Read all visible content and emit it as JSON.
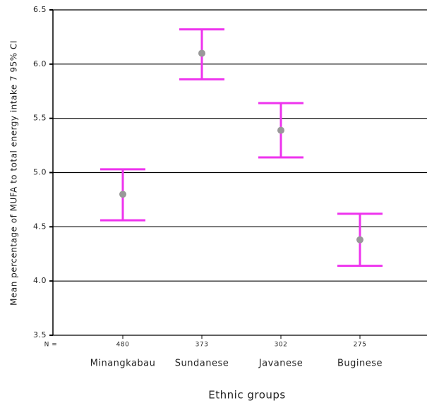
{
  "chart_data": {
    "type": "errorbar",
    "y_label": "Mean percentage of MUFA to total energy intake 7 95% CI",
    "x_label": "Ethnic groups",
    "categories": [
      "Minangkabau",
      "Sundanese",
      "Javanese",
      "Buginese"
    ],
    "values": [
      4.8,
      6.1,
      5.39,
      4.38
    ],
    "lower": [
      4.56,
      5.86,
      5.14,
      4.14
    ],
    "upper": [
      5.03,
      6.32,
      5.64,
      4.62
    ],
    "n_label": "N =",
    "n": [
      480,
      373,
      302,
      275
    ],
    "color": "#ee33ee",
    "point_color": "#999999",
    "ylim": [
      3.5,
      6.5
    ],
    "yticks": [
      3.5,
      {
        "value": 4,
        "label": "4.0"
      },
      4.5,
      {
        "value": 5,
        "label": "5.0"
      },
      5.5,
      {
        "value": 6,
        "label": "6.0"
      },
      6.5
    ],
    "grid": true
  }
}
